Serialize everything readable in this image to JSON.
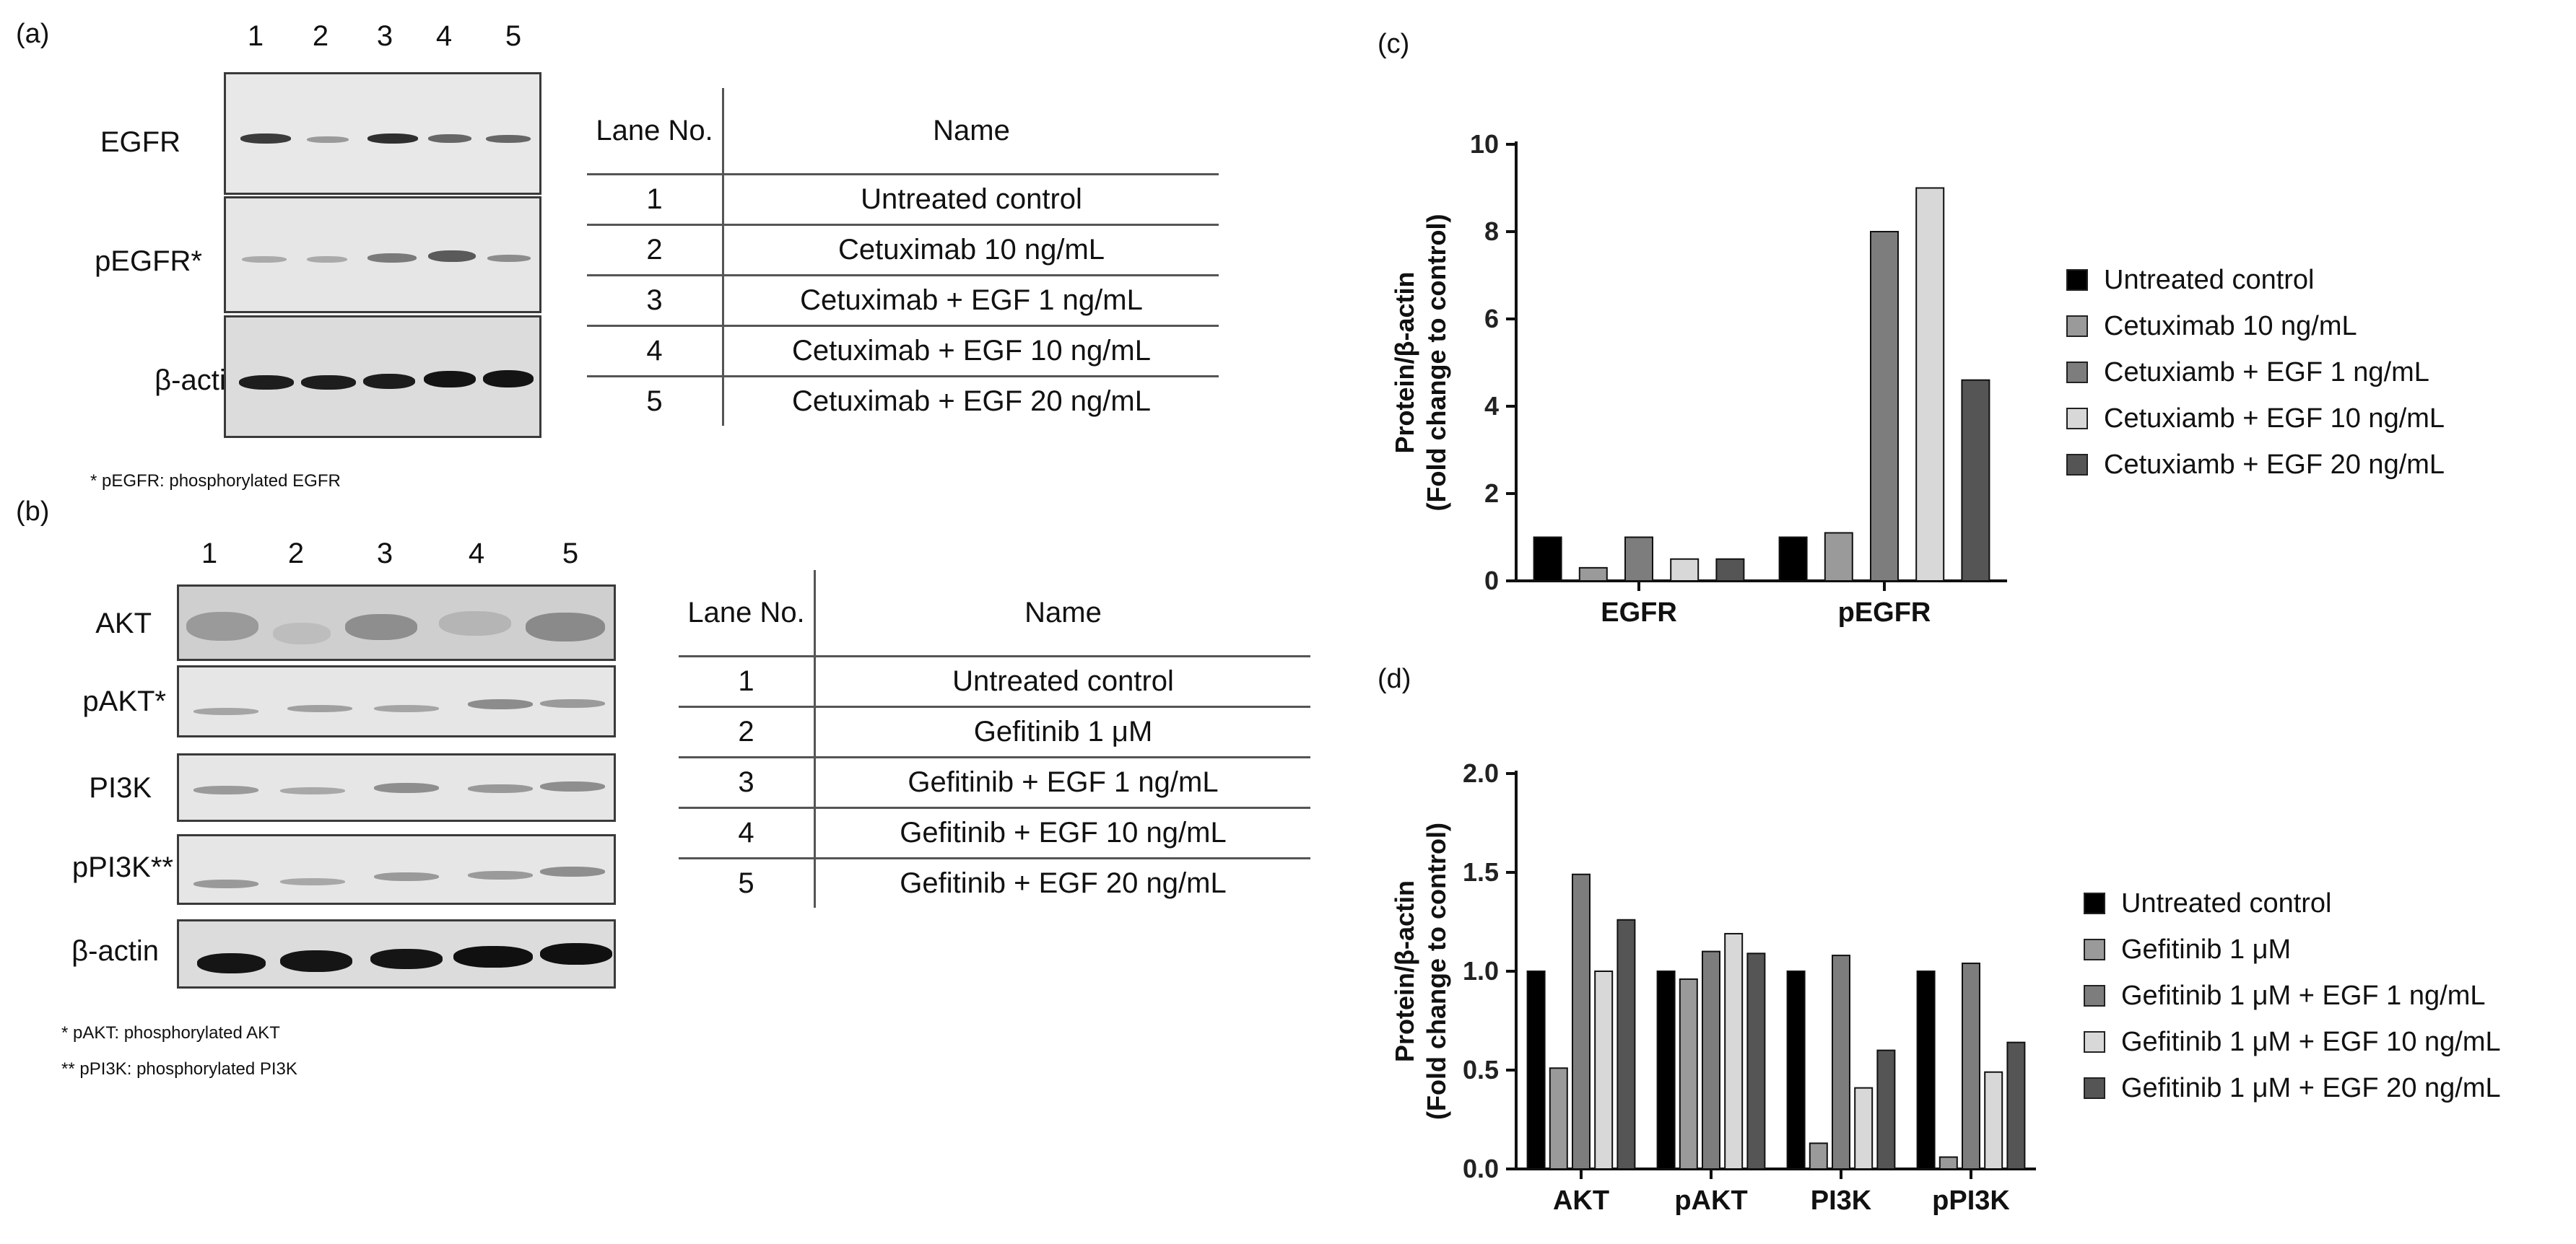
{
  "panel_a": {
    "letter": "(a)",
    "lanes": [
      "1",
      "2",
      "3",
      "4",
      "5"
    ],
    "blots": [
      "EGFR",
      "pEGFR*",
      "β-actin"
    ],
    "footnote": "* pEGFR: phosphorylated EGFR",
    "table": {
      "header_lane": "Lane No.",
      "header_name": "Name",
      "rows": [
        {
          "lane": "1",
          "name": "Untreated control"
        },
        {
          "lane": "2",
          "name": "Cetuximab 10 ng/mL"
        },
        {
          "lane": "3",
          "name": "Cetuximab + EGF 1 ng/mL"
        },
        {
          "lane": "4",
          "name": "Cetuximab + EGF 10 ng/mL"
        },
        {
          "lane": "5",
          "name": "Cetuximab + EGF 20 ng/mL"
        }
      ]
    }
  },
  "panel_b": {
    "letter": "(b)",
    "lanes": [
      "1",
      "2",
      "3",
      "4",
      "5"
    ],
    "blots": [
      "AKT",
      "pAKT*",
      "PI3K",
      "pPI3K**",
      "β-actin"
    ],
    "footnotes": [
      "* pAKT: phosphorylated AKT",
      "** pPI3K: phosphorylated PI3K"
    ],
    "table": {
      "header_lane": "Lane No.",
      "header_name": "Name",
      "rows": [
        {
          "lane": "1",
          "name": "Untreated control"
        },
        {
          "lane": "2",
          "name": "Gefitinib 1 μM"
        },
        {
          "lane": "3",
          "name": "Gefitinib + EGF 1 ng/mL"
        },
        {
          "lane": "4",
          "name": "Gefitinib + EGF 10 ng/mL"
        },
        {
          "lane": "5",
          "name": "Gefitinib + EGF 20 ng/mL"
        }
      ]
    }
  },
  "chart_data": [
    {
      "panel": "(c)",
      "type": "bar",
      "categories": [
        "EGFR",
        "pEGFR"
      ],
      "ylabel": "Protein/β-actin (Fold change to control)",
      "ylabel_lines": [
        "Protein/β-actin",
        "(Fold change to control)"
      ],
      "ylim": [
        0,
        10
      ],
      "yticks": [
        0,
        2,
        4,
        6,
        8,
        10
      ],
      "ytick_labels": [
        "0",
        "2",
        "4",
        "6",
        "8",
        "10"
      ],
      "legend_position": "right",
      "series": [
        {
          "name": "Untreated control",
          "color": "#000000",
          "values": [
            1.0,
            1.0
          ]
        },
        {
          "name": "Cetuximab 10 ng/mL",
          "color": "#9a9a9a",
          "values": [
            0.3,
            1.1
          ]
        },
        {
          "name": "Cetuxiamb + EGF 1 ng/mL",
          "color": "#7d7d7d",
          "values": [
            1.0,
            8.0
          ]
        },
        {
          "name": "Cetuxiamb + EGF 10 ng/mL",
          "color": "#d8d8d8",
          "values": [
            0.5,
            9.0
          ]
        },
        {
          "name": "Cetuxiamb + EGF 20 ng/mL",
          "color": "#555555",
          "values": [
            0.5,
            4.6
          ]
        }
      ]
    },
    {
      "panel": "(d)",
      "type": "bar",
      "categories": [
        "AKT",
        "pAKT",
        "PI3K",
        "pPI3K"
      ],
      "ylabel": "Protein/β-actin (Fold change to control)",
      "ylabel_lines": [
        "Protein/β-actin",
        "(Fold change to control)"
      ],
      "ylim": [
        0,
        2.0
      ],
      "yticks": [
        0,
        0.5,
        1.0,
        1.5,
        2.0
      ],
      "ytick_labels": [
        "0.0",
        "0.5",
        "1.0",
        "1.5",
        "2.0"
      ],
      "legend_position": "right",
      "series": [
        {
          "name": "Untreated control",
          "color": "#000000",
          "values": [
            1.0,
            1.0,
            1.0,
            1.0
          ]
        },
        {
          "name": "Gefitinib 1 μM",
          "color": "#9a9a9a",
          "values": [
            0.51,
            0.96,
            0.13,
            0.06
          ]
        },
        {
          "name": "Gefitinib 1 μM + EGF 1 ng/mL",
          "color": "#7d7d7d",
          "values": [
            1.49,
            1.1,
            1.08,
            1.04
          ]
        },
        {
          "name": "Gefitinib 1 μM + EGF 10 ng/mL",
          "color": "#d8d8d8",
          "values": [
            1.0,
            1.19,
            0.41,
            0.49
          ]
        },
        {
          "name": "Gefitinib 1 μM + EGF 20 ng/mL",
          "color": "#555555",
          "values": [
            1.26,
            1.09,
            0.6,
            0.64
          ]
        }
      ]
    }
  ]
}
